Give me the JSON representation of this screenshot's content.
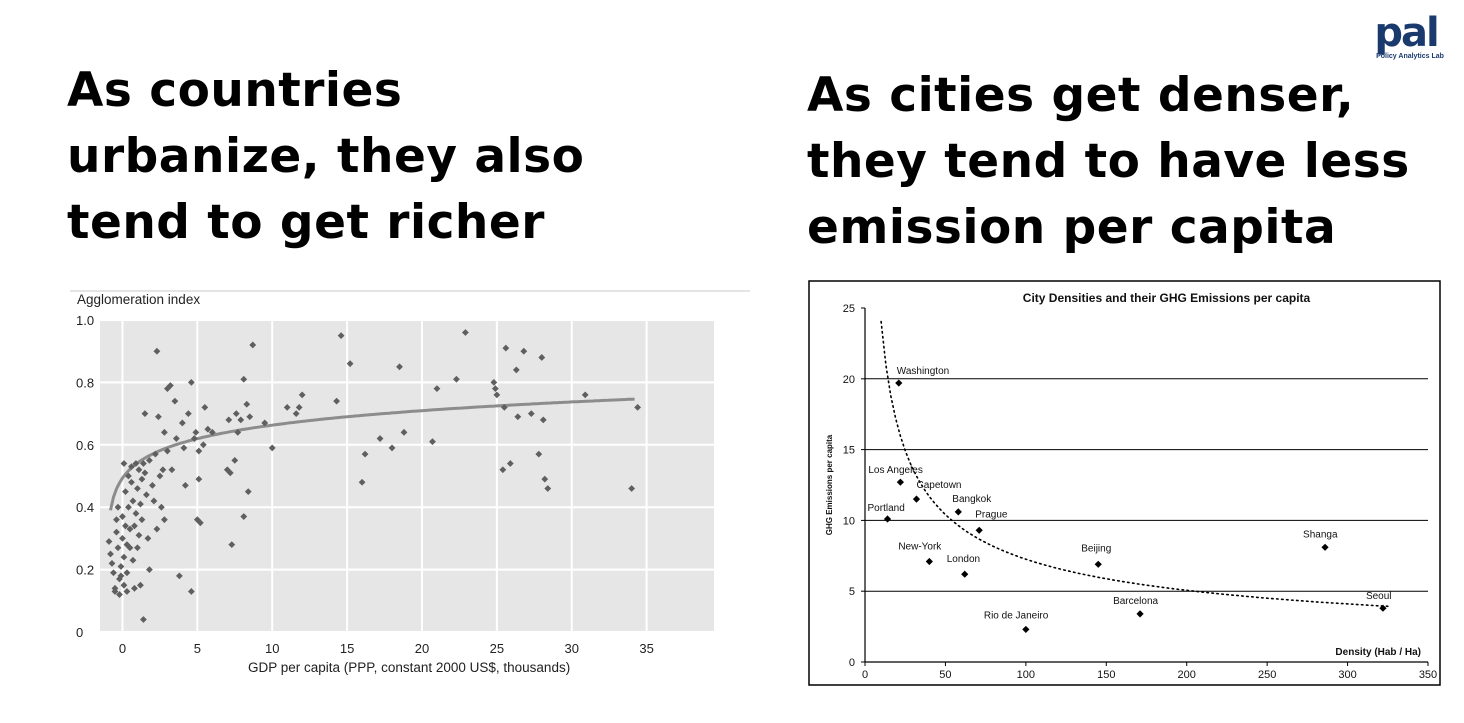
{
  "headings": {
    "left": [
      "As countries",
      "urbanize, they also",
      "tend to get richer"
    ],
    "right": [
      "As cities get denser,",
      "they tend to have less",
      "emission per capita"
    ]
  },
  "logo": {
    "mark": "pal",
    "text": "Policy Analytics Lab",
    "color": "#1a3a6e",
    "accent": "#1aa3d9"
  },
  "chart_data": [
    {
      "type": "scatter",
      "title": "",
      "ylabel": "Agglomeration index",
      "xlabel": "GDP per capita (PPP, constant 2000 US$, thousands)",
      "xlim": [
        -1.5,
        39.5
      ],
      "ylim": [
        0,
        1.0
      ],
      "x_ticks": [
        0,
        5,
        10,
        15,
        20,
        25,
        30,
        35
      ],
      "y_ticks": [
        0,
        0.2,
        0.4,
        0.6,
        0.8,
        1.0
      ],
      "y_tick_labels": [
        "0",
        "0.2",
        "0.4",
        "0.6",
        "0.8",
        "1.0"
      ],
      "grid": true,
      "background": "#e6e6e6",
      "marker_color": "#5f5f5f",
      "trend_color": "#8c8c8c",
      "trend": "logarithmic",
      "points": [
        [
          -0.9,
          0.29
        ],
        [
          -0.8,
          0.25
        ],
        [
          -0.7,
          0.22
        ],
        [
          -0.6,
          0.19
        ],
        [
          -0.5,
          0.14
        ],
        [
          -0.5,
          0.13
        ],
        [
          -0.4,
          0.36
        ],
        [
          -0.4,
          0.32
        ],
        [
          -0.3,
          0.4
        ],
        [
          -0.3,
          0.27
        ],
        [
          -0.2,
          0.17
        ],
        [
          -0.2,
          0.12
        ],
        [
          -0.1,
          0.21
        ],
        [
          -0.1,
          0.18
        ],
        [
          0.0,
          0.37
        ],
        [
          0.0,
          0.3
        ],
        [
          0.1,
          0.54
        ],
        [
          0.1,
          0.24
        ],
        [
          0.1,
          0.15
        ],
        [
          0.2,
          0.45
        ],
        [
          0.2,
          0.34
        ],
        [
          0.3,
          0.28
        ],
        [
          0.3,
          0.19
        ],
        [
          0.3,
          0.13
        ],
        [
          0.4,
          0.5
        ],
        [
          0.4,
          0.4
        ],
        [
          0.5,
          0.33
        ],
        [
          0.5,
          0.27
        ],
        [
          0.6,
          0.53
        ],
        [
          0.6,
          0.48
        ],
        [
          0.7,
          0.42
        ],
        [
          0.7,
          0.23
        ],
        [
          0.8,
          0.34
        ],
        [
          0.8,
          0.14
        ],
        [
          0.9,
          0.54
        ],
        [
          0.9,
          0.38
        ],
        [
          1.0,
          0.27
        ],
        [
          1.0,
          0.46
        ],
        [
          1.1,
          0.52
        ],
        [
          1.1,
          0.31
        ],
        [
          1.2,
          0.41
        ],
        [
          1.2,
          0.15
        ],
        [
          1.3,
          0.36
        ],
        [
          1.3,
          0.49
        ],
        [
          1.4,
          0.54
        ],
        [
          1.4,
          0.04
        ],
        [
          1.5,
          0.7
        ],
        [
          1.5,
          0.51
        ],
        [
          1.6,
          0.44
        ],
        [
          1.7,
          0.3
        ],
        [
          1.8,
          0.55
        ],
        [
          1.8,
          0.2
        ],
        [
          2.0,
          0.47
        ],
        [
          2.1,
          0.42
        ],
        [
          2.2,
          0.57
        ],
        [
          2.3,
          0.33
        ],
        [
          2.3,
          0.9
        ],
        [
          2.4,
          0.69
        ],
        [
          2.5,
          0.5
        ],
        [
          2.6,
          0.4
        ],
        [
          2.7,
          0.52
        ],
        [
          2.8,
          0.36
        ],
        [
          2.8,
          0.64
        ],
        [
          3.0,
          0.78
        ],
        [
          3.0,
          0.58
        ],
        [
          3.2,
          0.79
        ],
        [
          3.3,
          0.52
        ],
        [
          3.5,
          0.74
        ],
        [
          3.6,
          0.62
        ],
        [
          3.8,
          0.18
        ],
        [
          4.0,
          0.67
        ],
        [
          4.1,
          0.59
        ],
        [
          4.2,
          0.47
        ],
        [
          4.4,
          0.7
        ],
        [
          4.6,
          0.8
        ],
        [
          4.6,
          0.13
        ],
        [
          4.8,
          0.62
        ],
        [
          4.9,
          0.64
        ],
        [
          5.0,
          0.36
        ],
        [
          5.1,
          0.49
        ],
        [
          5.1,
          0.58
        ],
        [
          5.2,
          0.35
        ],
        [
          5.4,
          0.6
        ],
        [
          5.5,
          0.72
        ],
        [
          5.7,
          0.65
        ],
        [
          6.0,
          0.64
        ],
        [
          7.0,
          0.52
        ],
        [
          7.1,
          0.68
        ],
        [
          7.2,
          0.51
        ],
        [
          7.3,
          0.28
        ],
        [
          7.5,
          0.55
        ],
        [
          7.6,
          0.7
        ],
        [
          7.7,
          0.64
        ],
        [
          7.9,
          0.68
        ],
        [
          8.1,
          0.81
        ],
        [
          8.1,
          0.37
        ],
        [
          8.3,
          0.73
        ],
        [
          8.4,
          0.45
        ],
        [
          8.5,
          0.69
        ],
        [
          8.7,
          0.92
        ],
        [
          9.5,
          0.67
        ],
        [
          10.0,
          0.59
        ],
        [
          11.0,
          0.72
        ],
        [
          11.6,
          0.7
        ],
        [
          11.8,
          0.72
        ],
        [
          12.0,
          0.76
        ],
        [
          14.3,
          0.74
        ],
        [
          14.6,
          0.95
        ],
        [
          15.2,
          0.86
        ],
        [
          16.0,
          0.48
        ],
        [
          16.2,
          0.57
        ],
        [
          17.2,
          0.62
        ],
        [
          18.0,
          0.59
        ],
        [
          18.5,
          0.85
        ],
        [
          18.8,
          0.64
        ],
        [
          20.7,
          0.61
        ],
        [
          21.0,
          0.78
        ],
        [
          22.3,
          0.81
        ],
        [
          22.9,
          0.96
        ],
        [
          24.8,
          0.8
        ],
        [
          24.9,
          0.78
        ],
        [
          25.0,
          0.76
        ],
        [
          25.4,
          0.52
        ],
        [
          25.5,
          0.72
        ],
        [
          25.6,
          0.91
        ],
        [
          25.9,
          0.54
        ],
        [
          26.3,
          0.84
        ],
        [
          26.4,
          0.69
        ],
        [
          26.8,
          0.9
        ],
        [
          27.3,
          0.7
        ],
        [
          27.8,
          0.57
        ],
        [
          28.0,
          0.88
        ],
        [
          28.1,
          0.68
        ],
        [
          28.2,
          0.49
        ],
        [
          28.4,
          0.46
        ],
        [
          30.9,
          0.76
        ],
        [
          34.0,
          0.46
        ],
        [
          34.4,
          0.72
        ]
      ]
    },
    {
      "type": "scatter",
      "title": "City Densities and their GHG Emissions per capita",
      "xlabel": "Density (Hab / Ha)",
      "ylabel": "GHG Emissions per capita",
      "xlim": [
        0,
        350
      ],
      "ylim": [
        0,
        25
      ],
      "x_ticks": [
        0,
        50,
        100,
        150,
        200,
        250,
        300,
        350
      ],
      "y_ticks": [
        0,
        5,
        10,
        15,
        20,
        25
      ],
      "grid": "horizontal",
      "marker_color": "#000000",
      "trend": "dotted power curve",
      "points": [
        {
          "label": "Washington",
          "x": 21,
          "y": 19.7
        },
        {
          "label": "Los Angeles",
          "x": 22,
          "y": 12.7
        },
        {
          "label": "Capetown",
          "x": 32,
          "y": 11.5
        },
        {
          "label": "Portland",
          "x": 14,
          "y": 10.1
        },
        {
          "label": "Bangkok",
          "x": 58,
          "y": 10.6
        },
        {
          "label": "Prague",
          "x": 71,
          "y": 9.3
        },
        {
          "label": "New-York",
          "x": 40,
          "y": 7.1
        },
        {
          "label": "London",
          "x": 62,
          "y": 6.2
        },
        {
          "label": "Beijing",
          "x": 145,
          "y": 6.9
        },
        {
          "label": "Rio de Janeiro",
          "x": 100,
          "y": 2.3
        },
        {
          "label": "Barcelona",
          "x": 171,
          "y": 3.4
        },
        {
          "label": "Shanga",
          "x": 286,
          "y": 8.1
        },
        {
          "label": "Seoul",
          "x": 322,
          "y": 3.8
        }
      ]
    }
  ]
}
